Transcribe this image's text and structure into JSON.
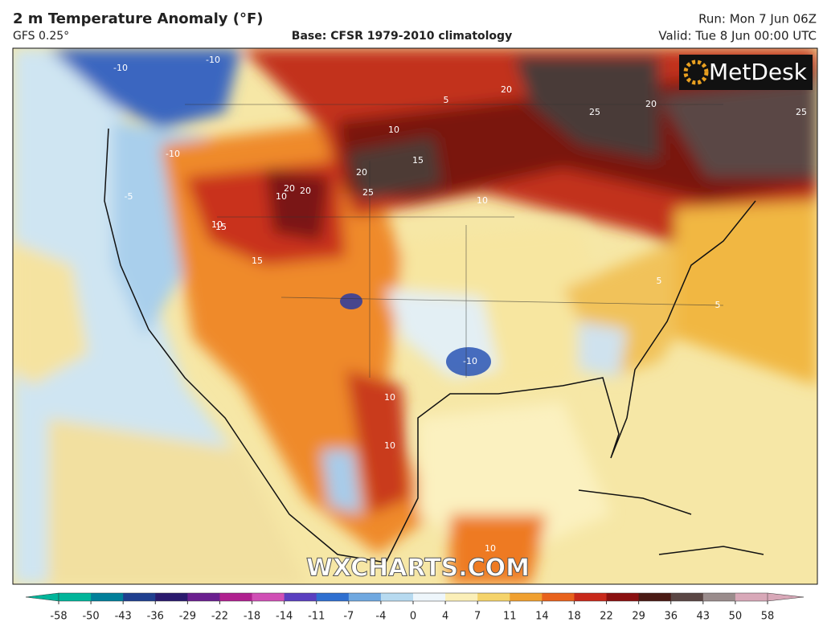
{
  "header": {
    "title": "2 m Temperature Anomaly (°F)",
    "model": "GFS 0.25°",
    "base": "Base: CFSR 1979-2010 climatology",
    "run": "Run: Mon 7 Jun 06Z",
    "valid": "Valid: Tue 8 Jun 00:00 UTC"
  },
  "logo": "MetDesk",
  "watermark": "WXCHARTS.COM",
  "contour_labels": [
    "-10",
    "-10",
    "-10",
    "10",
    "15",
    "20",
    "20",
    "15",
    "10",
    "20",
    "25",
    "15",
    "20",
    "25",
    "25",
    "20",
    "10",
    "5",
    "10",
    "10",
    "-10",
    "10",
    "10",
    "5",
    "5",
    "-5"
  ],
  "colorbar": {
    "ticks": [
      -58,
      -50,
      -43,
      -36,
      -29,
      -22,
      -18,
      -14,
      -11,
      -7,
      -4,
      0,
      4,
      7,
      11,
      14,
      18,
      22,
      29,
      36,
      43,
      50,
      58
    ],
    "colors": [
      "#00b59a",
      "#007f9a",
      "#1f3f8f",
      "#2a1a6e",
      "#6a1f8f",
      "#b0208f",
      "#d04fb5",
      "#5a3fc0",
      "#2f6fd0",
      "#6fa8e0",
      "#b7daf0",
      "#eef6fb",
      "#fbefb8",
      "#f5d36a",
      "#f0a030",
      "#e8621c",
      "#c8281a",
      "#8a1010",
      "#4a1a14",
      "#5a4644",
      "#9a8c8c",
      "#d8a8b8"
    ]
  }
}
